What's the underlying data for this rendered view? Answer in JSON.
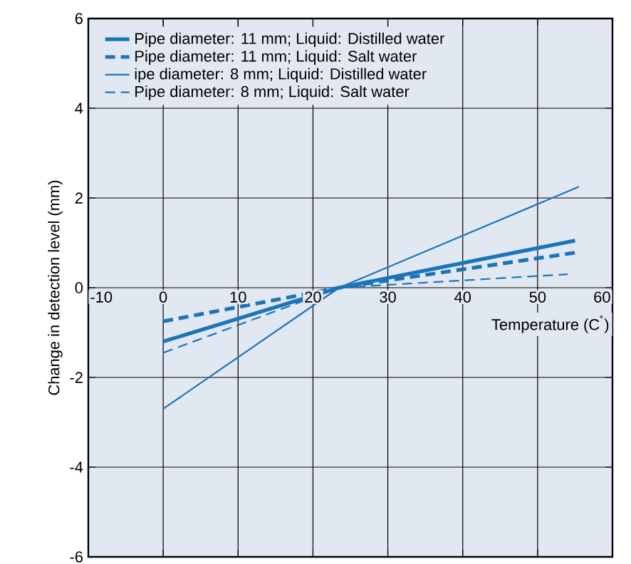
{
  "chart_data": {
    "type": "line",
    "xlabel": "Temperature (C$^{˚}$)",
    "ylabel": "Change in detection level (mm)",
    "xlim": [
      -10,
      60
    ],
    "ylim": [
      -6,
      6
    ],
    "xticks": [
      -10,
      0,
      10,
      20,
      30,
      40,
      50,
      60
    ],
    "yticks": [
      -6,
      -4,
      -2,
      0,
      2,
      4,
      6
    ],
    "grid": true,
    "legend": "top left",
    "marker": "none",
    "series": [
      {
        "name": "Pipe diameter: 11 mm; Liquid: Distilled water",
        "color": "#1a75bb",
        "line_style": "solid",
        "x": [
          0,
          23.5,
          55
        ],
        "values": [
          -1.2,
          0,
          1.05
        ]
      },
      {
        "name": "Pipe diameter: 11 mm; Liquid: Salt water",
        "color": "#1a75bb",
        "line_style": "dashed",
        "x": [
          0,
          23.5,
          55
        ],
        "values": [
          -0.75,
          0,
          0.78
        ]
      },
      {
        "name": "ipe diameter: 8 mm; Liquid: Distilled water",
        "color": "#1a75bb",
        "line_style": "solid",
        "x": [
          0,
          23.5,
          55.5
        ],
        "values": [
          -2.7,
          0,
          2.25
        ]
      },
      {
        "name": "Pipe diameter: 8 mm; Liquid: Salt water",
        "color": "#1a75bb",
        "line_style": "dashed",
        "x": [
          0,
          23.5,
          54
        ],
        "values": [
          -1.45,
          0,
          0.3
        ]
      }
    ]
  }
}
